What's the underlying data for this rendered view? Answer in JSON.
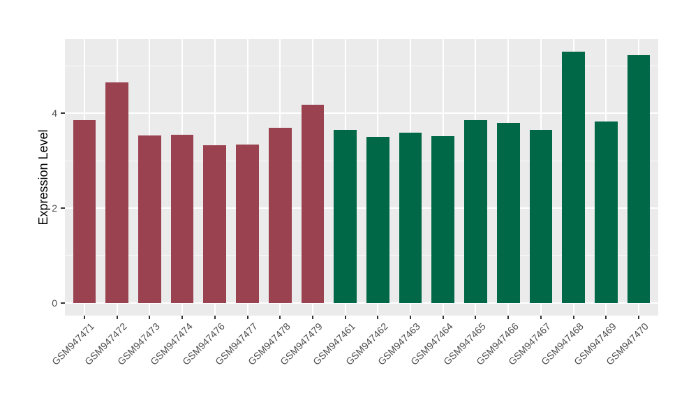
{
  "chart_data": {
    "type": "bar",
    "title": "",
    "xlabel": "",
    "ylabel": "Expression Level",
    "categories": [
      "GSM947471",
      "GSM947472",
      "GSM947473",
      "GSM947474",
      "GSM947476",
      "GSM947477",
      "GSM947478",
      "GSM947479",
      "GSM947461",
      "GSM947462",
      "GSM947463",
      "GSM947464",
      "GSM947465",
      "GSM947466",
      "GSM947467",
      "GSM947468",
      "GSM947469",
      "GSM947470"
    ],
    "values": [
      3.86,
      4.66,
      3.54,
      3.55,
      3.33,
      3.34,
      3.69,
      4.19,
      3.65,
      3.5,
      3.6,
      3.52,
      3.86,
      3.8,
      3.66,
      5.3,
      3.83,
      5.23
    ],
    "group_of_bar": [
      0,
      0,
      0,
      0,
      0,
      0,
      0,
      0,
      1,
      1,
      1,
      1,
      1,
      1,
      1,
      1,
      1,
      1
    ],
    "group_colors": [
      "#9A4250",
      "#006747"
    ],
    "y_ticks_major": [
      0,
      2,
      4
    ],
    "y_ticks_minor": [
      1,
      3,
      5
    ],
    "ylim": [
      -0.27,
      5.57
    ],
    "bar_width_ratio": 0.7,
    "grid": true,
    "legend_position": "none",
    "panel_background": "#EBEBEB",
    "gridline_color": "#FFFFFF",
    "axis_text_color": "#4D4D4D",
    "axis_title_color": "#000000",
    "tick_mark_color": "#333333"
  }
}
